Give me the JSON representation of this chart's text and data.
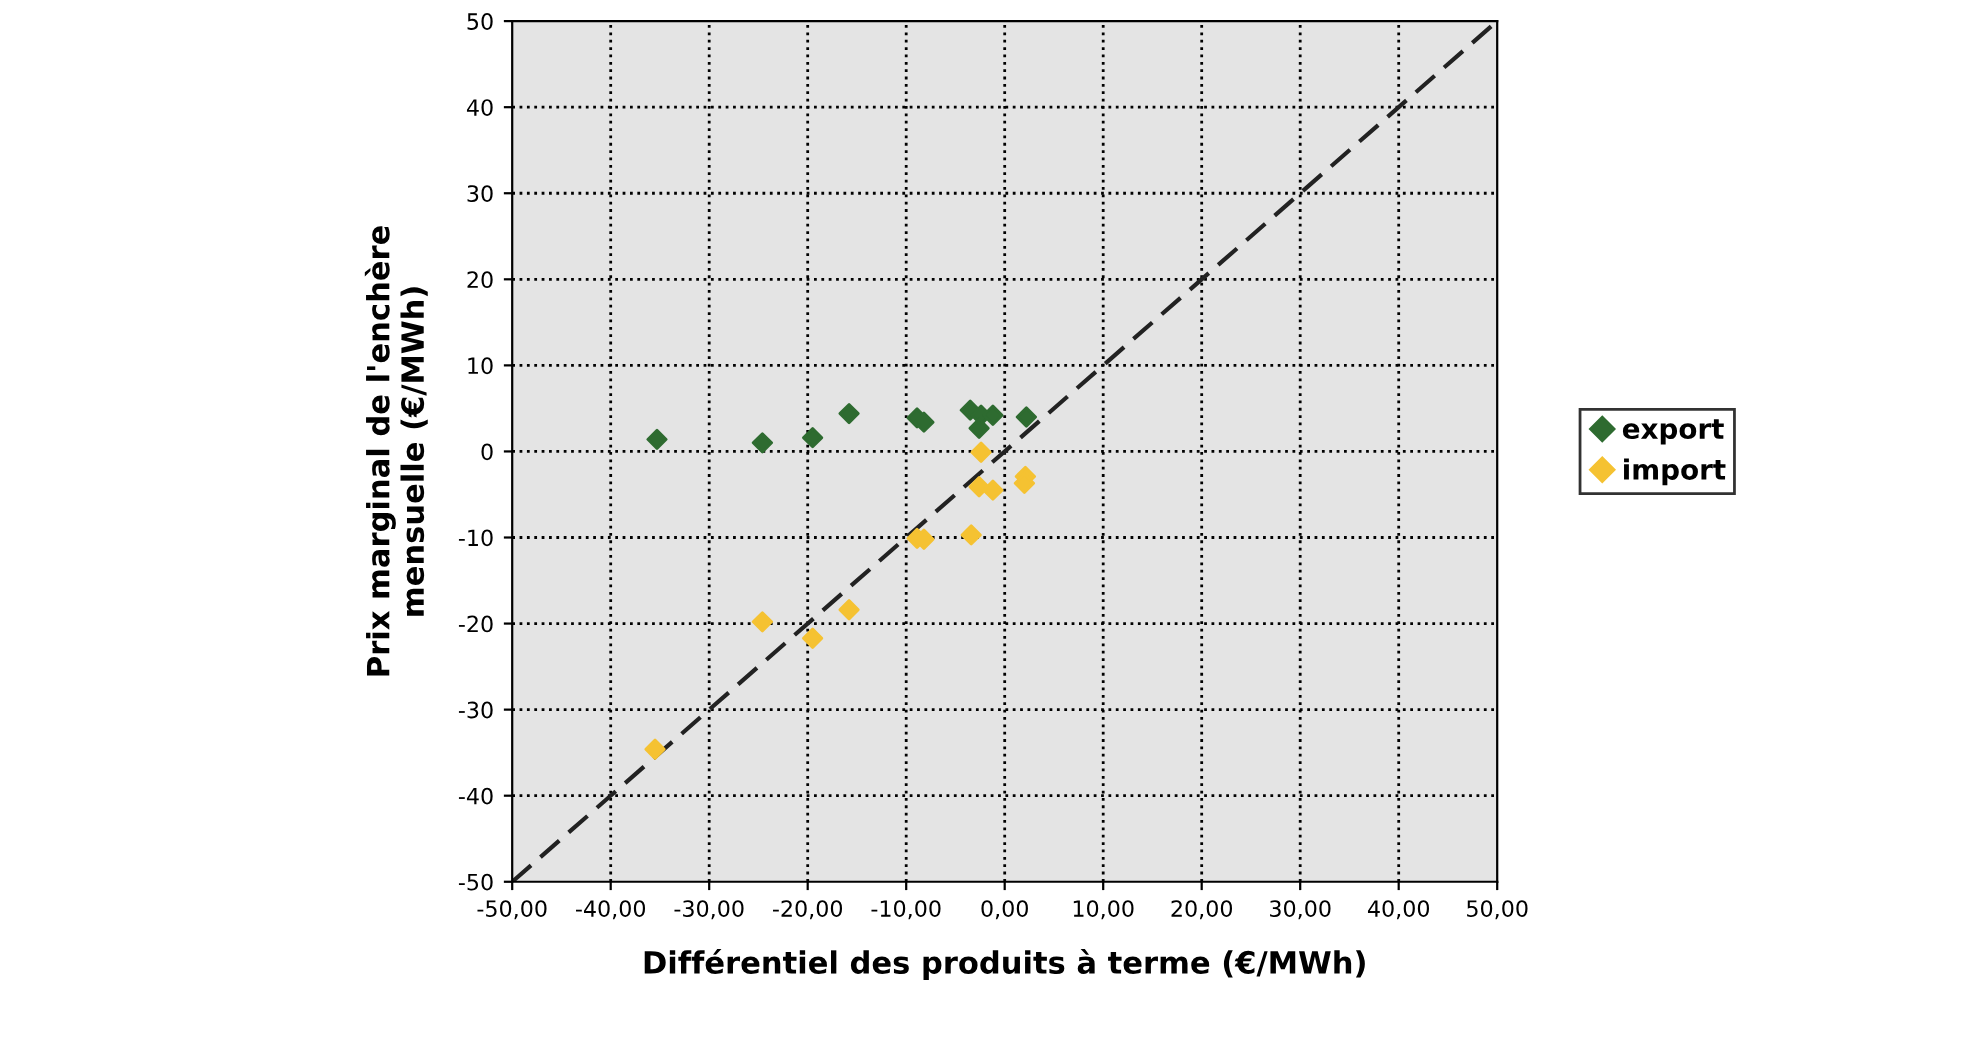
{
  "chart_data": {
    "type": "scatter",
    "xlabel": "Différentiel des produits à terme (€/MWh)",
    "ylabel": "Prix marginal de l'enchère\nmensuelle (€/MWh)",
    "xlim": [
      -50,
      50
    ],
    "ylim": [
      -50,
      50
    ],
    "xticks": [
      {
        "value": -50,
        "label": "-50,00"
      },
      {
        "value": -40,
        "label": "-40,00"
      },
      {
        "value": -30,
        "label": "-30,00"
      },
      {
        "value": -20,
        "label": "-20,00"
      },
      {
        "value": -10,
        "label": "-10,00"
      },
      {
        "value": 0,
        "label": "0,00"
      },
      {
        "value": 10,
        "label": "10,00"
      },
      {
        "value": 20,
        "label": "20,00"
      },
      {
        "value": 30,
        "label": "30,00"
      },
      {
        "value": 40,
        "label": "40,00"
      },
      {
        "value": 50,
        "label": "50,00"
      }
    ],
    "yticks": [
      -50,
      -40,
      -30,
      -20,
      -10,
      0,
      10,
      20,
      30,
      40,
      50
    ],
    "grid": true,
    "legend": "right",
    "marker": "diamond",
    "series": [
      {
        "name": "export",
        "color": "#2e6b30",
        "x": [
          -35.3,
          -24.6,
          -19.5,
          -15.8,
          -8.9,
          -8.2,
          -3.5,
          -2.4,
          -1.2,
          -2.6,
          2.2
        ],
        "values": [
          1.4,
          1.0,
          1.6,
          4.4,
          3.9,
          3.4,
          4.8,
          4.2,
          4.2,
          2.7,
          4.0
        ]
      },
      {
        "name": "import",
        "color": "#f5c232",
        "x": [
          -2.4,
          -2.6,
          -1.2,
          2.1,
          2.0,
          -8.9,
          -8.2,
          -3.4,
          -24.6,
          -15.8,
          -19.5,
          -35.5
        ],
        "values": [
          -0.1,
          -4.1,
          -4.5,
          -2.9,
          -3.7,
          -10.1,
          -10.2,
          -9.7,
          -19.8,
          -18.4,
          -21.7,
          -34.6
        ]
      },
      {
        "type": "line",
        "color": "#222222",
        "line_style": "dashed",
        "marker": "none",
        "x": [
          -50,
          50
        ],
        "values": [
          -50,
          50
        ]
      }
    ]
  }
}
